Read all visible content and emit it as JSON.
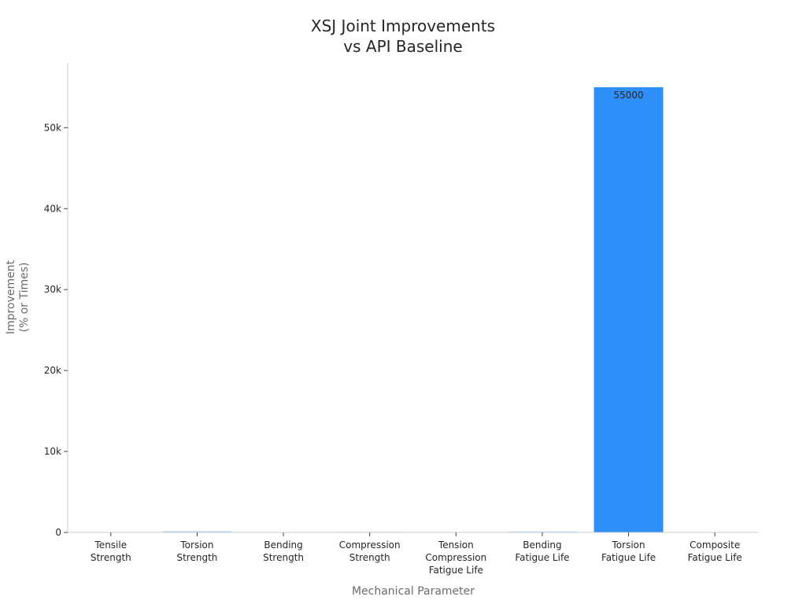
{
  "chart_data": {
    "type": "bar",
    "title": [
      "XSJ Joint Improvements",
      "vs API Baseline"
    ],
    "xlabel": "Mechanical Parameter",
    "ylabel": [
      "Improvement",
      "(% or Times)"
    ],
    "categories": [
      [
        "Tensile",
        "Strength"
      ],
      [
        "Torsion",
        "Strength"
      ],
      [
        "Bending",
        "Strength"
      ],
      [
        "Compression",
        "Strength"
      ],
      [
        "Tension",
        "Compression",
        "Fatigue Life"
      ],
      [
        "Bending",
        "Fatigue Life"
      ],
      [
        "Torsion",
        "Fatigue Life"
      ],
      [
        "Composite",
        "Fatigue Life"
      ]
    ],
    "values": [
      40,
      160,
      45,
      70,
      35,
      110,
      55000,
      30
    ],
    "data_labels": [
      "",
      "",
      "",
      "",
      "",
      "",
      "55000",
      ""
    ],
    "ylim": [
      0,
      58000
    ],
    "yticks": [
      0,
      10000,
      20000,
      30000,
      40000,
      50000
    ],
    "ytick_labels": [
      "0",
      "10k",
      "20k",
      "30k",
      "40k",
      "50k"
    ],
    "grid": false,
    "colors": {
      "bar_highlight": "#2f8ff8",
      "bar_light": "#b8d7f5",
      "axis": "#cccccc",
      "text": "#262626",
      "muted": "#6b6b6b"
    }
  }
}
